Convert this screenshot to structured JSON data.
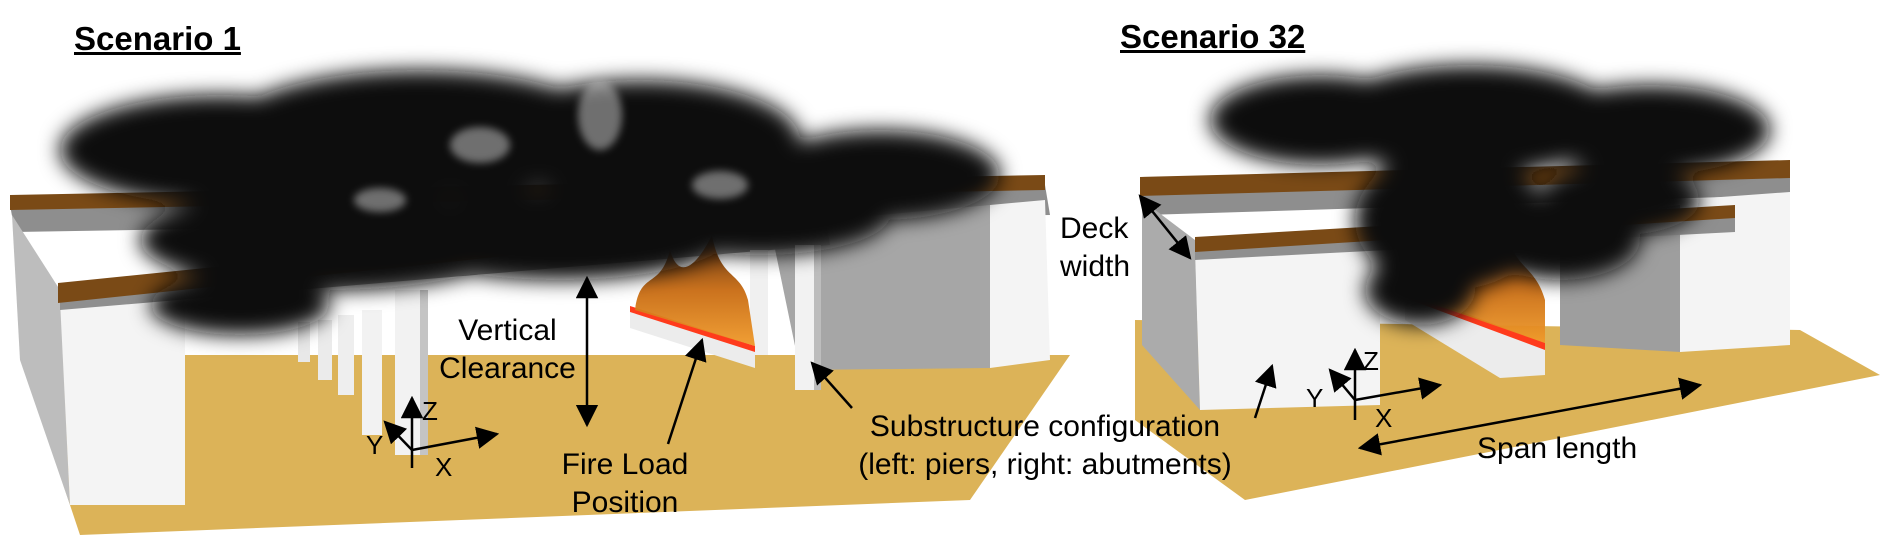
{
  "panels": [
    {
      "title": "Scenario 1",
      "axes": {
        "x": "X",
        "y": "Y",
        "z": "Z"
      }
    },
    {
      "title": "Scenario 32",
      "axes": {
        "x": "X",
        "y": "Y",
        "z": "Z"
      }
    }
  ],
  "annotations": {
    "vertical_clearance": [
      "Vertical",
      "Clearance"
    ],
    "fire_load_position": [
      "Fire Load",
      "Position"
    ],
    "substructure": [
      "Substructure configuration",
      "(left: piers, right: abutments)"
    ],
    "deck_width": [
      "Deck",
      "width"
    ],
    "span_length": "Span length"
  },
  "colors": {
    "ground": "#dcb358",
    "deck_edge": "#7a4a16",
    "deck_underside": "#8f8f8f",
    "structure_white": "#f4f4f4",
    "smoke": "#0c0c0c",
    "fire": "#e07a1a"
  }
}
